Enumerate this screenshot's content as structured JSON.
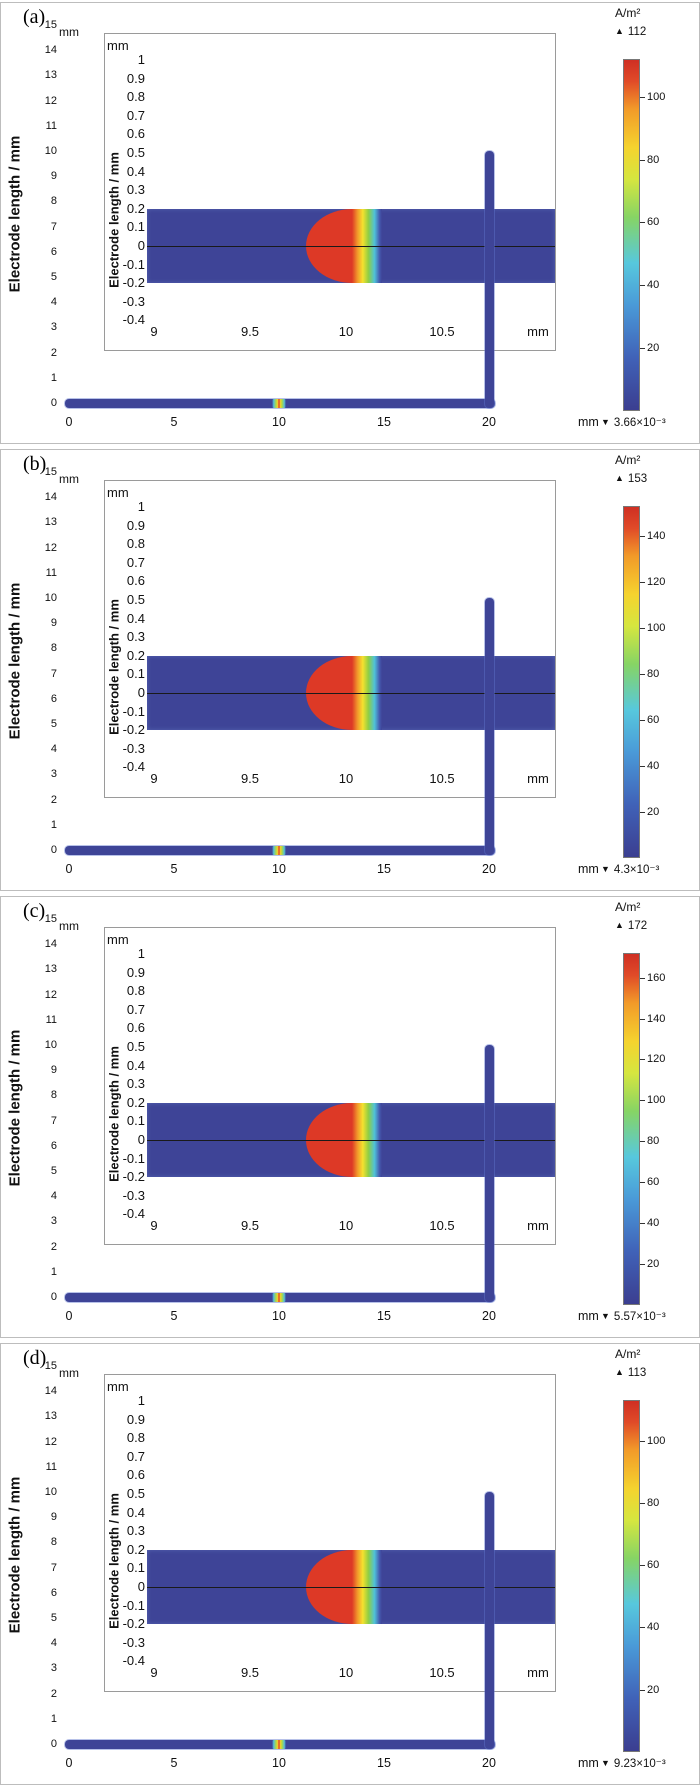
{
  "axes": {
    "main": {
      "y_title": "Electrode length / mm",
      "y_unit": "mm",
      "x_unit": "mm",
      "y_ticks": [
        15,
        14,
        13,
        12,
        11,
        10,
        9,
        8,
        7,
        6,
        5,
        4,
        3,
        2,
        1,
        0
      ],
      "x_ticks": [
        0,
        5,
        10,
        15,
        20
      ]
    },
    "inset": {
      "y_title": "Electrode length / mm",
      "y_unit": "mm",
      "x_unit": "mm",
      "y_ticks": [
        "1",
        "0.9",
        "0.8",
        "0.7",
        "0.6",
        "0.5",
        "0.4",
        "0.3",
        "0.2",
        "0.1",
        "0",
        "-0.1",
        "-0.2",
        "-0.3",
        "-0.4"
      ],
      "x_ticks": [
        "9",
        "9.5",
        "10",
        "10.5"
      ]
    }
  },
  "panels": [
    {
      "label": "(a)",
      "cb_unit": "A/m²",
      "max": 112,
      "max_label": "112",
      "min_label": "3.66×10⁻³",
      "cb_ticks": [
        100,
        80,
        60,
        40,
        20
      ]
    },
    {
      "label": "(b)",
      "cb_unit": "A/m²",
      "max": 153,
      "max_label": "153",
      "min_label": "4.3×10⁻³",
      "cb_ticks": [
        140,
        120,
        100,
        80,
        60,
        40,
        20
      ]
    },
    {
      "label": "(c)",
      "cb_unit": "A/m²",
      "max": 172,
      "max_label": "172",
      "min_label": "5.57×10⁻³",
      "cb_ticks": [
        160,
        140,
        120,
        100,
        80,
        60,
        40,
        20
      ]
    },
    {
      "label": "(d)",
      "cb_unit": "A/m²",
      "max": 113,
      "max_label": "113",
      "min_label": "9.23×10⁻³",
      "cb_ticks": [
        100,
        80,
        60,
        40,
        20
      ]
    }
  ],
  "colors": {
    "electrode_blue": "#3e4497",
    "hot_red": "#dd3926",
    "colormap_bottom_to_top": [
      "#3b3e90",
      "#4062b8",
      "#4a9ad8",
      "#57c8dd",
      "#86d465",
      "#d6e63f",
      "#f5d32e",
      "#f29a29",
      "#cf2f23"
    ]
  },
  "chart_data": [
    {
      "type": "heatmap",
      "panel": "(a)",
      "colorbar": {
        "unit": "A/m²",
        "max": 112,
        "min": 0.00366,
        "max_label": "112",
        "min_label": "3.66×10⁻³",
        "ticks": [
          100,
          80,
          60,
          40,
          20
        ],
        "colormap": "rainbow blue-cyan-green-yellow-red",
        "position": "right"
      },
      "main_axes": {
        "ylabel": "Electrode length / mm",
        "x_unit": "mm",
        "y_unit": "mm",
        "x_ticks": [
          0,
          5,
          10,
          15,
          20
        ],
        "y_ticks": [
          0,
          1,
          2,
          3,
          4,
          5,
          6,
          7,
          8,
          9,
          10,
          11,
          12,
          13,
          14,
          15
        ],
        "grid": false
      },
      "electrode_geometry_mm": {
        "horizontal_segment": {
          "y": 0,
          "x": [
            0,
            20
          ]
        },
        "vertical_segment": {
          "x": 20,
          "y": [
            0,
            10
          ]
        },
        "high_current_spot_x": 10
      },
      "inset_axes": {
        "ylabel": "Electrode length / mm",
        "x_unit": "mm",
        "y_unit": "mm",
        "x_ticks": [
          9,
          9.5,
          10,
          10.5
        ],
        "y_ticks": [
          1,
          0.9,
          0.8,
          0.7,
          0.6,
          0.5,
          0.4,
          0.3,
          0.2,
          0.1,
          0,
          -0.1,
          -0.2,
          -0.3,
          -0.4
        ],
        "band_y_range": [
          -0.2,
          0.2
        ],
        "max_density_region": "red semicircle centered at x≈10, y=0, gradient decay toward larger x"
      }
    },
    {
      "type": "heatmap",
      "panel": "(b)",
      "colorbar": {
        "unit": "A/m²",
        "max": 153,
        "min": 0.0043,
        "max_label": "153",
        "min_label": "4.3×10⁻³",
        "ticks": [
          140,
          120,
          100,
          80,
          60,
          40,
          20
        ],
        "colormap": "rainbow blue-cyan-green-yellow-red",
        "position": "right"
      },
      "main_axes": {
        "ylabel": "Electrode length / mm",
        "x_unit": "mm",
        "y_unit": "mm",
        "x_ticks": [
          0,
          5,
          10,
          15,
          20
        ],
        "y_ticks": [
          0,
          1,
          2,
          3,
          4,
          5,
          6,
          7,
          8,
          9,
          10,
          11,
          12,
          13,
          14,
          15
        ],
        "grid": false
      },
      "electrode_geometry_mm": {
        "horizontal_segment": {
          "y": 0,
          "x": [
            0,
            20
          ]
        },
        "vertical_segment": {
          "x": 20,
          "y": [
            0,
            10
          ]
        },
        "high_current_spot_x": 10
      },
      "inset_axes": {
        "ylabel": "Electrode length / mm",
        "x_unit": "mm",
        "y_unit": "mm",
        "x_ticks": [
          9,
          9.5,
          10,
          10.5
        ],
        "y_ticks": [
          1,
          0.9,
          0.8,
          0.7,
          0.6,
          0.5,
          0.4,
          0.3,
          0.2,
          0.1,
          0,
          -0.1,
          -0.2,
          -0.3,
          -0.4
        ],
        "band_y_range": [
          -0.2,
          0.2
        ],
        "max_density_region": "red semicircle centered at x≈10, y=0, gradient decay toward larger x"
      }
    },
    {
      "type": "heatmap",
      "panel": "(c)",
      "colorbar": {
        "unit": "A/m²",
        "max": 172,
        "min": 0.00557,
        "max_label": "172",
        "min_label": "5.57×10⁻³",
        "ticks": [
          160,
          140,
          120,
          100,
          80,
          60,
          40,
          20
        ],
        "colormap": "rainbow blue-cyan-green-yellow-red",
        "position": "right"
      },
      "main_axes": {
        "ylabel": "Electrode length / mm",
        "x_unit": "mm",
        "y_unit": "mm",
        "x_ticks": [
          0,
          5,
          10,
          15,
          20
        ],
        "y_ticks": [
          0,
          1,
          2,
          3,
          4,
          5,
          6,
          7,
          8,
          9,
          10,
          11,
          12,
          13,
          14,
          15
        ],
        "grid": false
      },
      "electrode_geometry_mm": {
        "horizontal_segment": {
          "y": 0,
          "x": [
            0,
            20
          ]
        },
        "vertical_segment": {
          "x": 20,
          "y": [
            0,
            10
          ]
        },
        "high_current_spot_x": 10
      },
      "inset_axes": {
        "ylabel": "Electrode length / mm",
        "x_unit": "mm",
        "y_unit": "mm",
        "x_ticks": [
          9,
          9.5,
          10,
          10.5
        ],
        "y_ticks": [
          1,
          0.9,
          0.8,
          0.7,
          0.6,
          0.5,
          0.4,
          0.3,
          0.2,
          0.1,
          0,
          -0.1,
          -0.2,
          -0.3,
          -0.4
        ],
        "band_y_range": [
          -0.2,
          0.2
        ],
        "max_density_region": "red semicircle centered at x≈10, y=0, gradient decay toward larger x"
      }
    },
    {
      "type": "heatmap",
      "panel": "(d)",
      "colorbar": {
        "unit": "A/m²",
        "max": 113,
        "min": 0.00923,
        "max_label": "113",
        "min_label": "9.23×10⁻³",
        "ticks": [
          100,
          80,
          60,
          40,
          20
        ],
        "colormap": "rainbow blue-cyan-green-yellow-red",
        "position": "right"
      },
      "main_axes": {
        "ylabel": "Electrode length / mm",
        "x_unit": "mm",
        "y_unit": "mm",
        "x_ticks": [
          0,
          5,
          10,
          15,
          20
        ],
        "y_ticks": [
          0,
          1,
          2,
          3,
          4,
          5,
          6,
          7,
          8,
          9,
          10,
          11,
          12,
          13,
          14,
          15
        ],
        "grid": false
      },
      "electrode_geometry_mm": {
        "horizontal_segment": {
          "y": 0,
          "x": [
            0,
            20
          ]
        },
        "vertical_segment": {
          "x": 20,
          "y": [
            0,
            10
          ]
        },
        "high_current_spot_x": 10
      },
      "inset_axes": {
        "ylabel": "Electrode length / mm",
        "x_unit": "mm",
        "y_unit": "mm",
        "x_ticks": [
          9,
          9.5,
          10,
          10.5
        ],
        "y_ticks": [
          1,
          0.9,
          0.8,
          0.7,
          0.6,
          0.5,
          0.4,
          0.3,
          0.2,
          0.1,
          0,
          -0.1,
          -0.2,
          -0.3,
          -0.4
        ],
        "band_y_range": [
          -0.2,
          0.2
        ],
        "max_density_region": "red semicircle centered at x≈10, y=0, gradient decay toward larger x"
      }
    }
  ]
}
